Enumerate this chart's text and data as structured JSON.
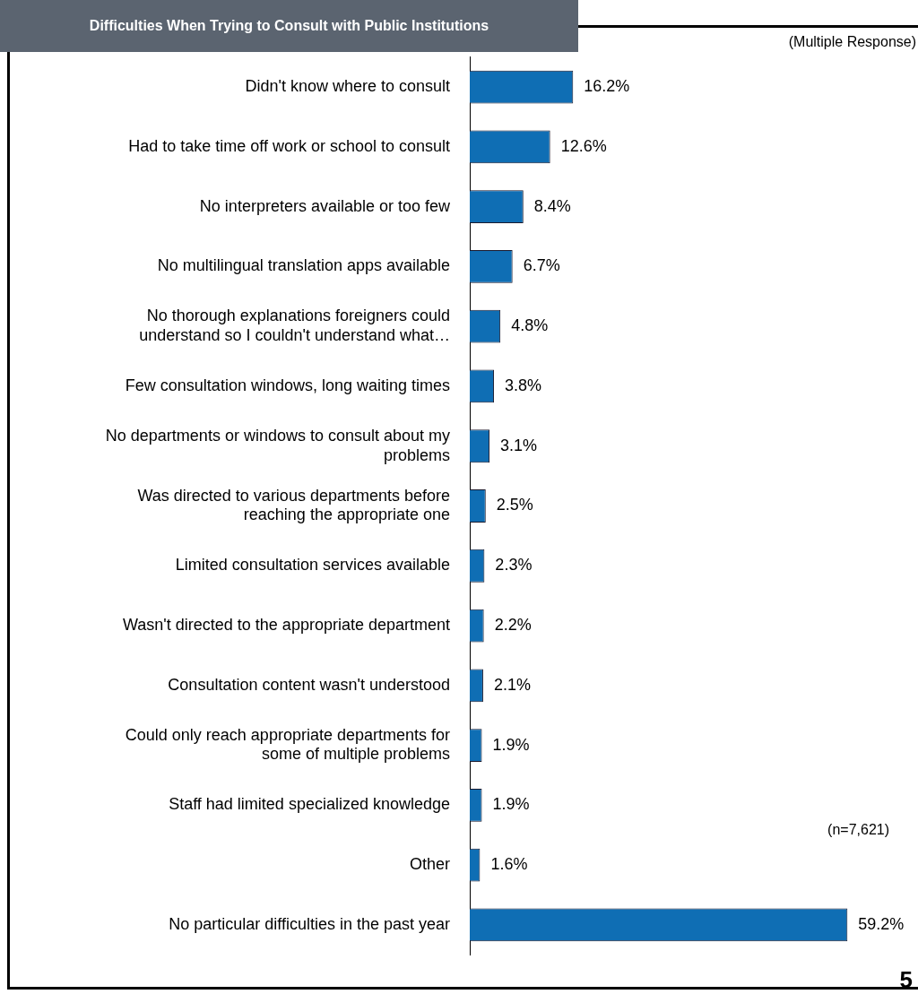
{
  "chart_data": {
    "type": "bar",
    "orientation": "horizontal",
    "title": "Difficulties When Trying to Consult with Public Institutions",
    "categories": [
      "Didn't know where to consult",
      "Had to take time off work or school to consult",
      "No interpreters available or too few",
      "No multilingual translation apps available",
      "No thorough explanations foreigners could understand so I couldn't understand what…",
      "Few consultation windows, long waiting times",
      "No departments or windows to consult about my problems",
      "Was directed to various departments before reaching the appropriate one",
      "Limited consultation services available",
      "Wasn't directed to the appropriate department",
      "Consultation content wasn't understood",
      "Could only reach appropriate departments for some of multiple problems",
      "Staff had limited specialized knowledge",
      "Other",
      "No particular difficulties in the past year"
    ],
    "values": [
      16.2,
      12.6,
      8.4,
      6.7,
      4.8,
      3.8,
      3.1,
      2.5,
      2.3,
      2.2,
      2.1,
      1.9,
      1.9,
      1.6,
      59.2
    ],
    "value_labels": [
      "16.2%",
      "12.6%",
      "8.4%",
      "6.7%",
      "4.8%",
      "3.8%",
      "3.1%",
      "2.5%",
      "2.3%",
      "2.2%",
      "2.1%",
      "1.9%",
      "1.9%",
      "1.6%",
      "59.2%"
    ],
    "color": "#0f6eb4",
    "grid": false,
    "annotations": [
      "(Multiple Response)",
      "(n=7,621)",
      "5"
    ]
  }
}
